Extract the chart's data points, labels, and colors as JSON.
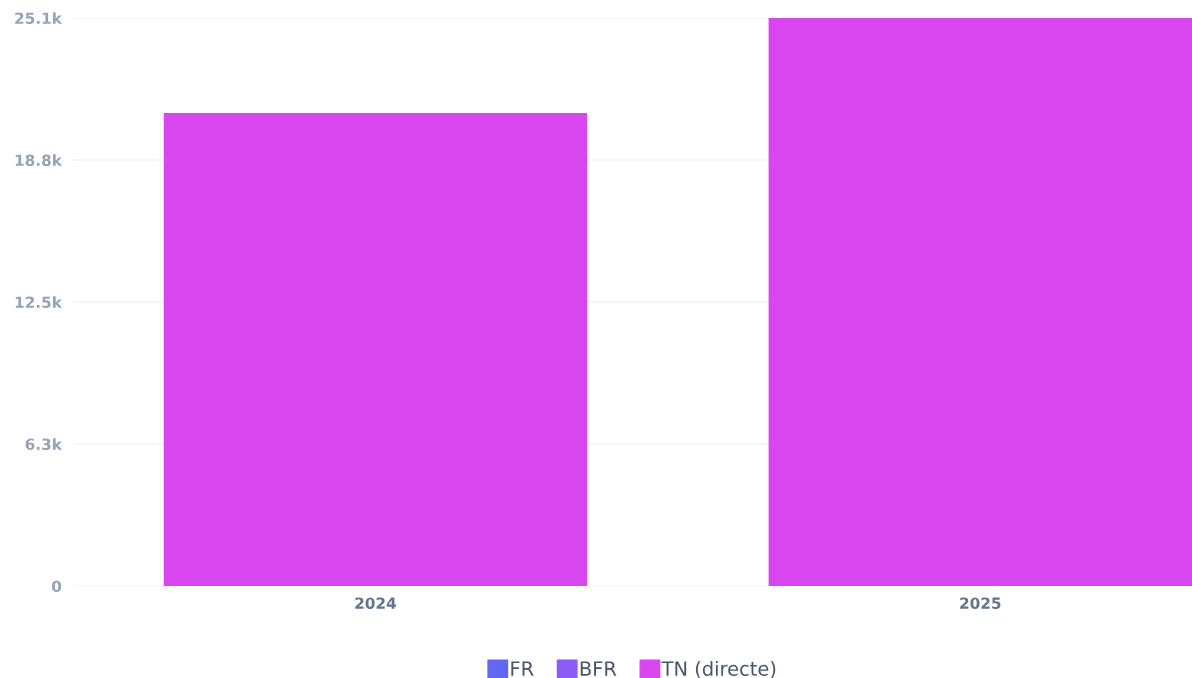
{
  "chart_data": {
    "type": "bar",
    "stacked": true,
    "categories": [
      "2024",
      "2025"
    ],
    "series": [
      {
        "name": "FR",
        "color": "#6366f1",
        "values": [
          0,
          0
        ]
      },
      {
        "name": "BFR",
        "color": "#8b5cf6",
        "values": [
          0,
          0
        ]
      },
      {
        "name": "TN (directe)",
        "color": "#d946ef",
        "values": [
          20900,
          25100
        ]
      }
    ],
    "ylim": [
      0,
      25100
    ],
    "yticks": [
      0,
      {
        "value": 6275,
        "label": "6.3k"
      },
      {
        "value": 12550,
        "label": "12.5k"
      },
      {
        "value": 18825,
        "label": "18.8k"
      },
      {
        "value": 25100,
        "label": "25.1k"
      }
    ],
    "grid": "y",
    "legend": "bottom"
  }
}
